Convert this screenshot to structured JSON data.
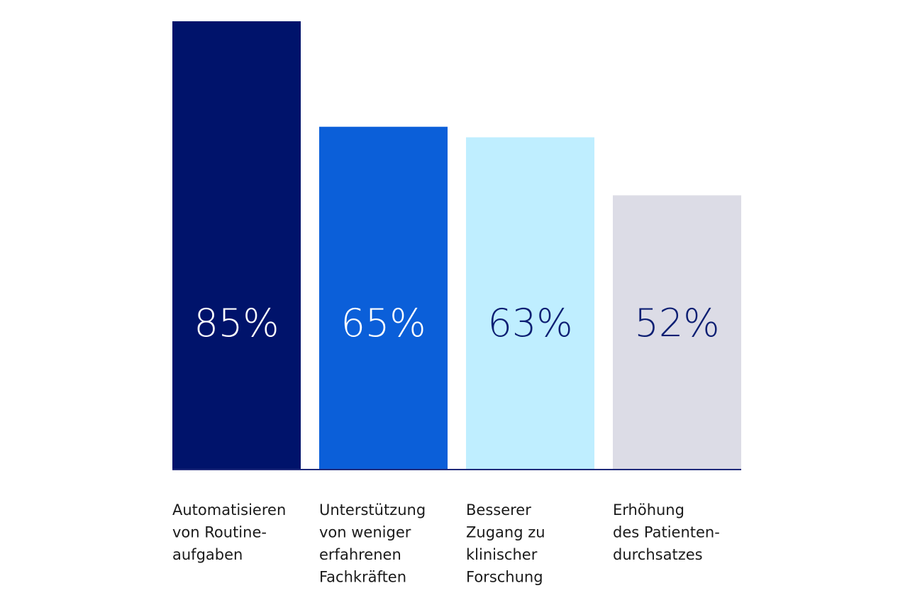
{
  "chart_data": {
    "type": "bar",
    "categories": [
      [
        "Automatisieren",
        "von Routine-",
        "aufgaben"
      ],
      [
        "Unterstützung",
        "von weniger",
        "erfahrenen",
        "Fachkräften"
      ],
      [
        "Besserer",
        "Zugang zu",
        "klinischer",
        "Forschung"
      ],
      [
        "Erhöhung",
        "des Patienten-",
        "durchsatzes"
      ]
    ],
    "values": [
      85,
      65,
      63,
      52
    ],
    "value_labels": [
      "85%",
      "65%",
      "63%",
      "52%"
    ],
    "unit": "%",
    "ylim": [
      0,
      85
    ],
    "grid": false,
    "legend": "none",
    "colors": {
      "bars": [
        "#00136b",
        "#0b5fd9",
        "#bfeeff",
        "#dcdce6"
      ],
      "value_text": [
        "#ffffff",
        "#ffffff",
        "#0d1f73",
        "#0d1f73"
      ],
      "baseline": "#1f2a7a"
    }
  }
}
